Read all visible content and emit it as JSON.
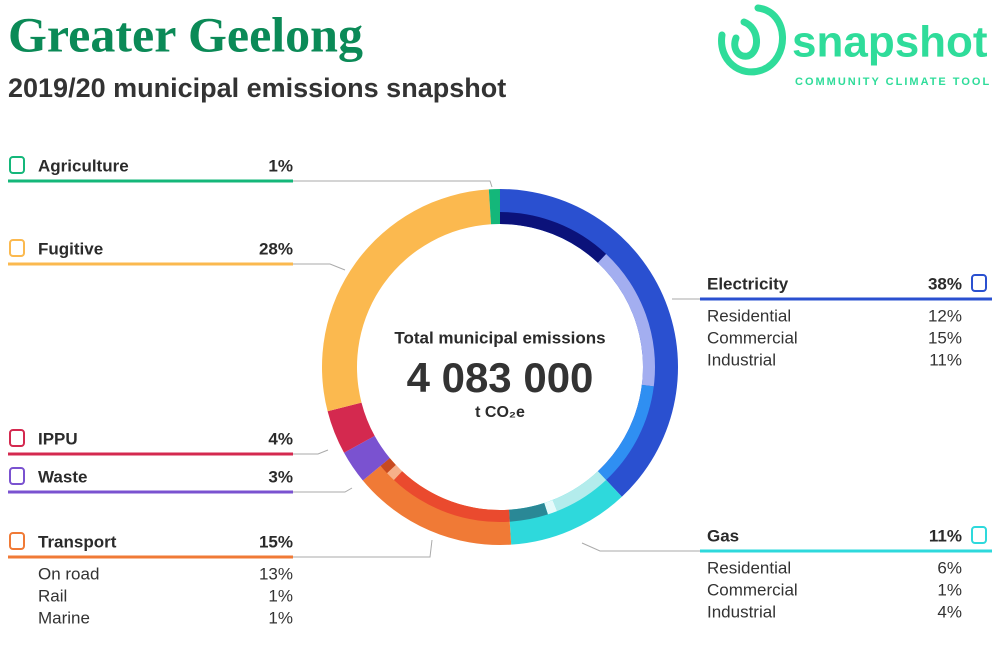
{
  "header": {
    "title": "Greater Geelong",
    "subtitle": "2019/20 municipal emissions snapshot",
    "logo": "snapshot",
    "tagline": "COMMUNITY CLIMATE TOOL"
  },
  "chart_data": {
    "type": "donut",
    "center_title": "Total municipal emissions",
    "total": 4083000,
    "total_label": "4 083 000",
    "unit": "t CO₂e",
    "series": [
      {
        "name": "Electricity",
        "value": 38,
        "value_label": "38%",
        "color": "#2a50d0",
        "subsectors": [
          {
            "name": "Residential",
            "value": 12,
            "value_label": "12%",
            "color": "#0b127a"
          },
          {
            "name": "Commercial",
            "value": 15,
            "value_label": "15%",
            "color": "#a3aef0"
          },
          {
            "name": "Industrial",
            "value": 11,
            "value_label": "11%",
            "color": "#2f8ff2"
          }
        ]
      },
      {
        "name": "Gas",
        "value": 11,
        "value_label": "11%",
        "color": "#2ed9dc",
        "subsectors": [
          {
            "name": "Residential",
            "value": 6,
            "value_label": "6%",
            "color": "#b3ecec"
          },
          {
            "name": "Commercial",
            "value": 1,
            "value_label": "1%",
            "color": "#e6fafa"
          },
          {
            "name": "Industrial",
            "value": 4,
            "value_label": "4%",
            "color": "#2a8896"
          }
        ]
      },
      {
        "name": "Transport",
        "value": 15,
        "value_label": "15%",
        "color": "#f07a36",
        "subsectors": [
          {
            "name": "On road",
            "value": 13,
            "value_label": "13%",
            "color": "#ea4a2e"
          },
          {
            "name": "Rail",
            "value": 1,
            "value_label": "1%",
            "color": "#f6b08a"
          },
          {
            "name": "Marine",
            "value": 1,
            "value_label": "1%",
            "color": "#c84a20"
          }
        ]
      },
      {
        "name": "Waste",
        "value": 3,
        "value_label": "3%",
        "color": "#7a52d0"
      },
      {
        "name": "IPPU",
        "value": 4,
        "value_label": "4%",
        "color": "#d4294f"
      },
      {
        "name": "Fugitive",
        "value": 28,
        "value_label": "28%",
        "color": "#fbb94f"
      },
      {
        "name": "Agriculture",
        "value": 1,
        "value_label": "1%",
        "color": "#14b77a"
      }
    ]
  }
}
